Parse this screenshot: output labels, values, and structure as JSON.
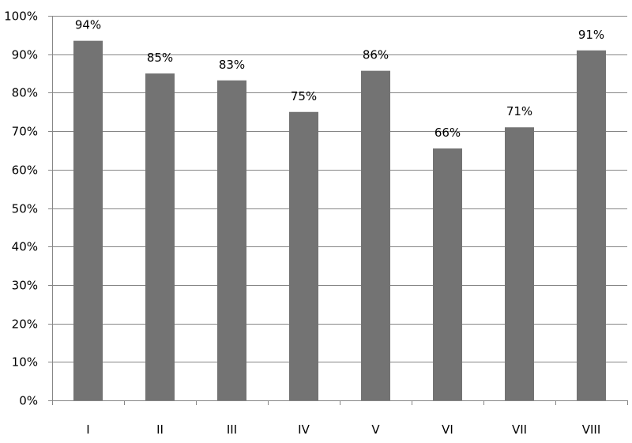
{
  "chart_data": {
    "type": "bar",
    "categories": [
      "I",
      "II",
      "III",
      "IV",
      "V",
      "VI",
      "VII",
      "VIII"
    ],
    "values": [
      93.5,
      85,
      83.2,
      75,
      85.7,
      65.5,
      71,
      91
    ],
    "data_labels": [
      "94%",
      "85%",
      "83%",
      "75%",
      "86%",
      "66%",
      "71%",
      "91%"
    ],
    "y_ticks": [
      0,
      10,
      20,
      30,
      40,
      50,
      60,
      70,
      80,
      90,
      100
    ],
    "y_tick_labels": [
      "0%",
      "10%",
      "20%",
      "30%",
      "40%",
      "50%",
      "60%",
      "70%",
      "80%",
      "90%",
      "100%"
    ],
    "ylim": [
      0,
      100
    ],
    "title": "",
    "xlabel": "",
    "ylabel": "",
    "grid": true,
    "legend": "none",
    "colors": {
      "bar": "#737373",
      "grid": "#868686",
      "axis": "#868686",
      "text": "#000000"
    }
  }
}
